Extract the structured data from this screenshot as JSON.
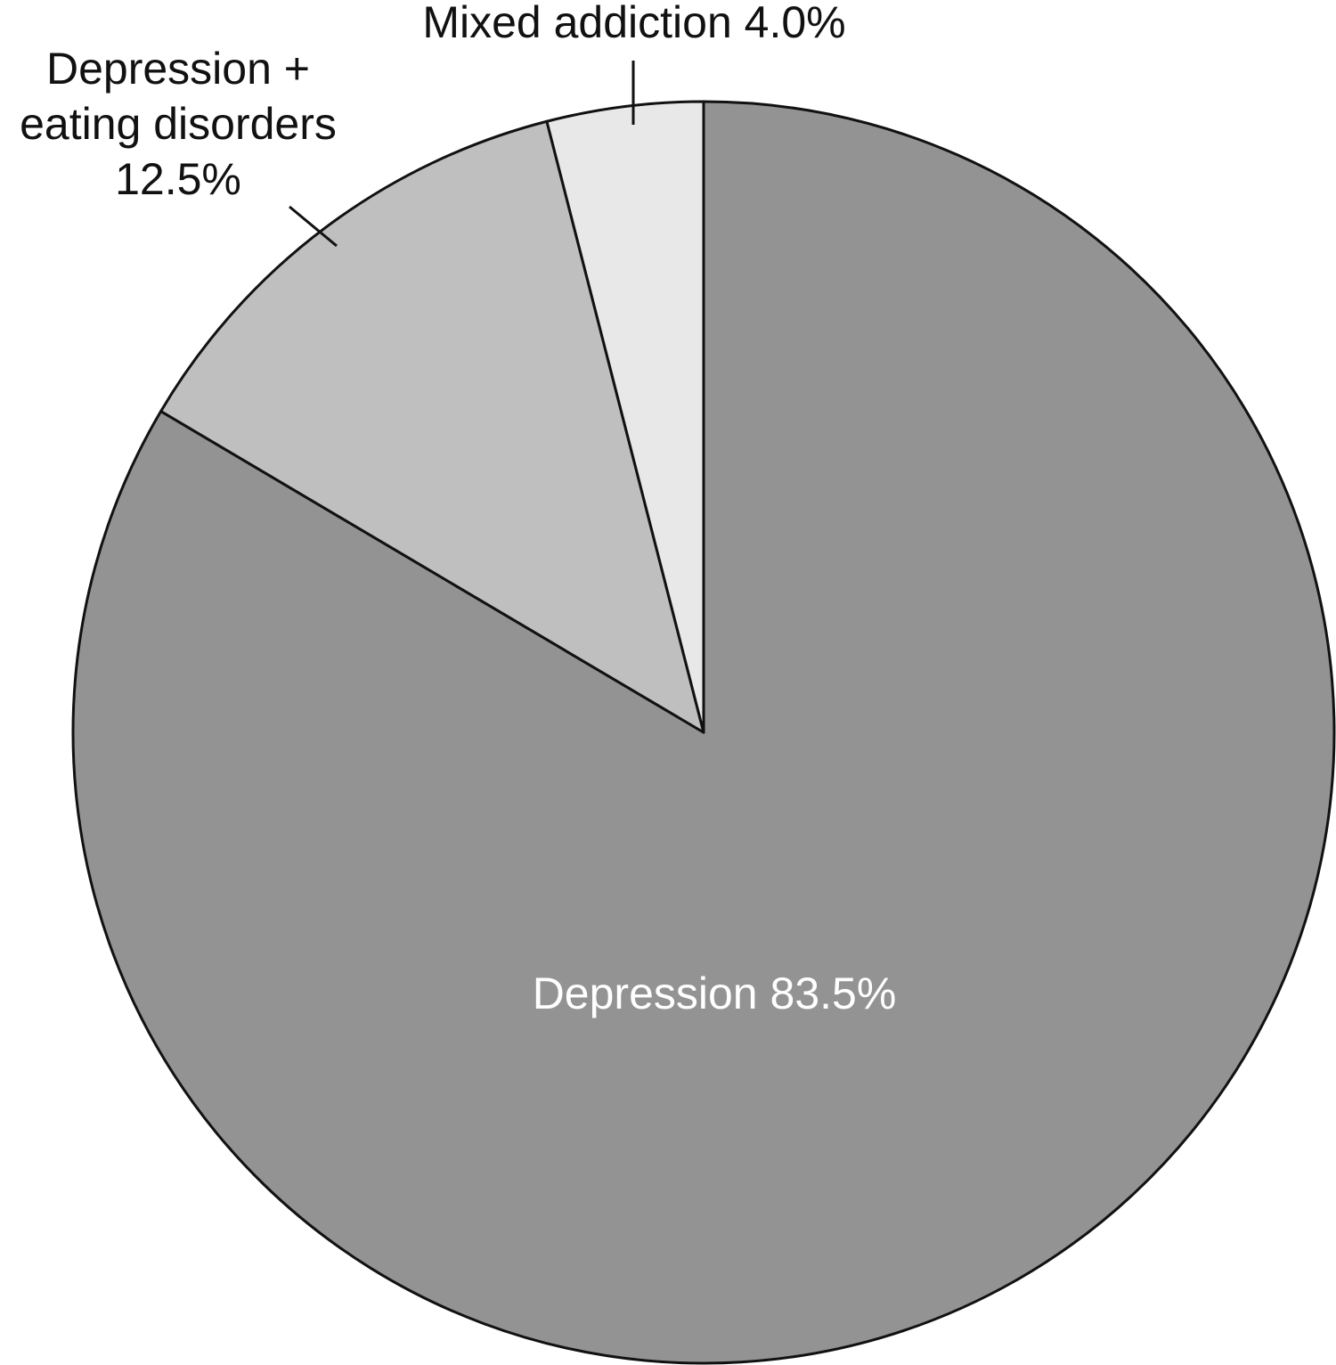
{
  "chart_data": {
    "type": "pie",
    "categories": [
      "Depression",
      "Depression + eating disorders",
      "Mixed addiction"
    ],
    "values": [
      83.5,
      12.5,
      4.0
    ],
    "value_labels": [
      "83.5%",
      "12.5%",
      "4.0%"
    ],
    "colors": [
      "#939393",
      "#bfbfbf",
      "#e8e8e8"
    ]
  }
}
